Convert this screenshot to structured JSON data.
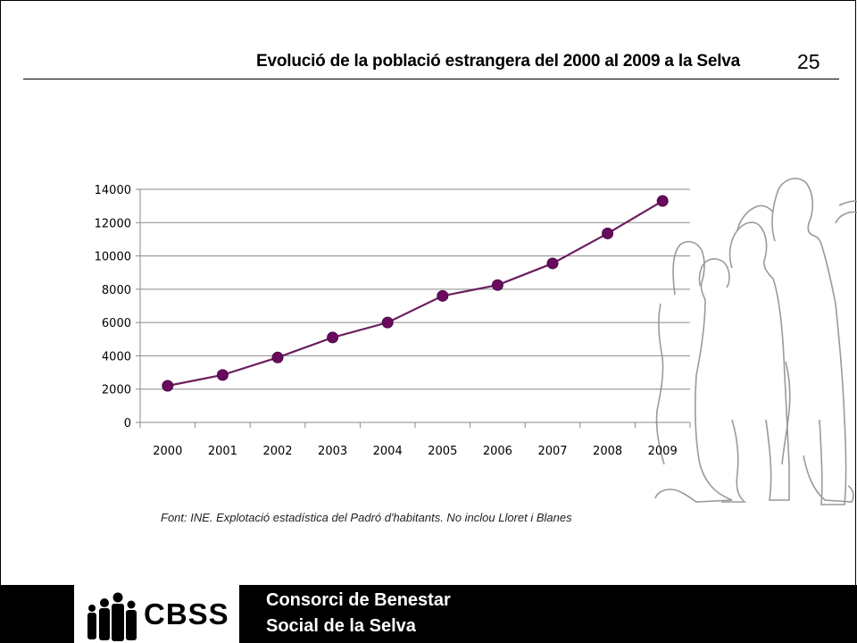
{
  "header": {
    "title": "Evolució de la població estrangera del 2000 al 2009 a la Selva",
    "page_number": "25"
  },
  "chart_data": {
    "type": "line",
    "title": "",
    "xlabel": "",
    "ylabel": "",
    "categories": [
      "2000",
      "2001",
      "2002",
      "2003",
      "2004",
      "2005",
      "2006",
      "2007",
      "2008",
      "2009"
    ],
    "series": [
      {
        "values": [
          2200,
          2850,
          3900,
          5100,
          6000,
          7600,
          8250,
          9550,
          11350,
          13300
        ]
      }
    ],
    "ylim": [
      0,
      14000
    ],
    "yticks": [
      0,
      2000,
      4000,
      6000,
      8000,
      10000,
      12000,
      14000
    ],
    "grid": true,
    "colors": {
      "line": "#6a1f5e",
      "marker": "#6a0a5f",
      "grid": "#8a8a8a",
      "axis": "#8a8a8a"
    }
  },
  "source_note": "Font: INE. Explotació estadística del Padró d'habitants. No inclou Lloret i Blanes",
  "footer": {
    "logo_text": "CBSS",
    "org_line1": "Consorci de Benestar",
    "org_line2": "Social de la Selva"
  }
}
